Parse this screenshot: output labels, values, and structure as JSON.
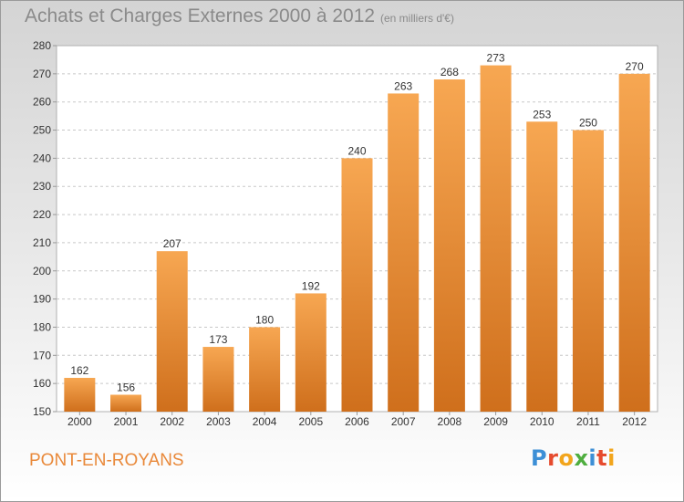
{
  "header": {
    "title": "Achats et Charges Externes 2000 à 2012",
    "subtitle": "(en milliers d'€)"
  },
  "footer": {
    "city": "PONT-EN-ROYANS",
    "logo": [
      "P",
      "r",
      "o",
      "x",
      "i",
      "t",
      "i"
    ]
  },
  "colors": {
    "bar_light": "#f7a752",
    "bar_dark": "#cf6f1c",
    "city_text": "#e9893a"
  },
  "chart_data": {
    "type": "bar",
    "title": "Achats et Charges Externes 2000 à 2012",
    "subtitle": "(en milliers d'€)",
    "xlabel": "",
    "ylabel": "",
    "categories": [
      "2000",
      "2001",
      "2002",
      "2003",
      "2004",
      "2005",
      "2006",
      "2007",
      "2008",
      "2009",
      "2010",
      "2011",
      "2012"
    ],
    "values": [
      162,
      156,
      207,
      173,
      180,
      192,
      240,
      263,
      268,
      273,
      253,
      250,
      270
    ],
    "ylim": [
      150,
      280
    ],
    "yticks": [
      150,
      160,
      170,
      180,
      190,
      200,
      210,
      220,
      230,
      240,
      250,
      260,
      270,
      280
    ],
    "grid": "horizontal-dashed",
    "legend": "none"
  }
}
